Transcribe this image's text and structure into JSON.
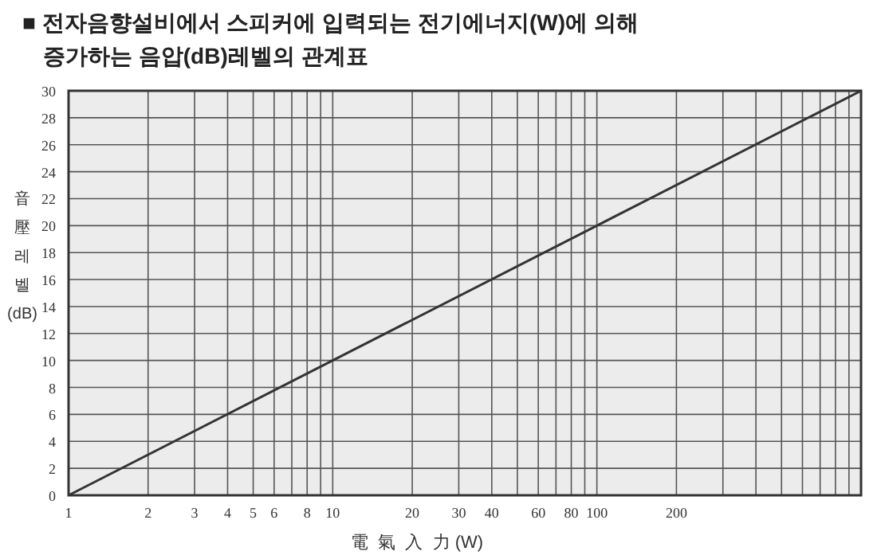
{
  "chart_data": {
    "type": "line",
    "title": "■ 전자음향설비에서 스피커에 입력되는 전기에너지(W)에 의해 증가하는 음압(dB)레벨의 관계표",
    "xlabel": "電  氣  入  力 (W)",
    "ylabel": "音壓레벨(dB)",
    "log": "x",
    "x": [
      1,
      10,
      100,
      1000
    ],
    "series": [
      {
        "color": "#333333",
        "values": [
          0,
          10,
          20,
          30
        ]
      }
    ],
    "xlim": [
      1,
      1000
    ],
    "ylim": [
      0,
      30
    ],
    "xticks": [
      1,
      2,
      3,
      4,
      5,
      6,
      {
        "value": 7,
        "label": null
      },
      8,
      {
        "value": 9,
        "label": null
      },
      10,
      20,
      30,
      40,
      {
        "value": 50,
        "label": null
      },
      60,
      {
        "value": 70,
        "label": null
      },
      80,
      {
        "value": 90,
        "label": null
      },
      100,
      200,
      {
        "value": 300,
        "label": null
      },
      {
        "value": 400,
        "label": null
      },
      {
        "value": 500,
        "label": null
      },
      {
        "value": 600,
        "label": null
      },
      {
        "value": 700,
        "label": null
      },
      {
        "value": 800,
        "label": null
      },
      {
        "value": 900,
        "label": null
      }
    ],
    "yticks": [
      0,
      2,
      4,
      6,
      8,
      10,
      12,
      14,
      16,
      18,
      20,
      22,
      24,
      26,
      28,
      30
    ],
    "grid": true
  }
}
